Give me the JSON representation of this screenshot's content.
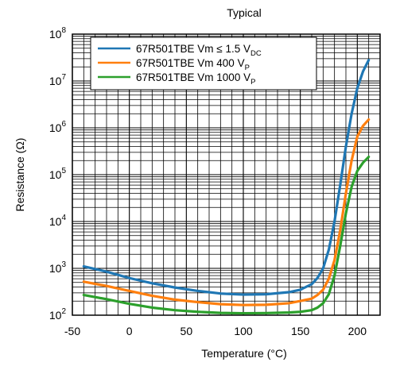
{
  "chart_data": {
    "type": "line",
    "title": "Typical",
    "xlabel": "Temperature (°C)",
    "ylabel": "Resistance (Ω)",
    "xlim": [
      -50,
      220
    ],
    "ylim": [
      100,
      100000000
    ],
    "y_scale": "log",
    "grid": true,
    "legend_placement": "top-left",
    "x_ticks": [
      "-50",
      "0",
      "50",
      "100",
      "150",
      "200"
    ],
    "x_tick_values": [
      -50,
      0,
      50,
      100,
      150,
      200
    ],
    "y_tick_values": [
      100,
      1000,
      10000,
      100000,
      1000000,
      10000000,
      100000000
    ],
    "y_tick_exponents": [
      "2",
      "3",
      "4",
      "5",
      "6",
      "7",
      "8"
    ],
    "y_tick_base": "10",
    "series": [
      {
        "name": "67R501TBE Vm ≤ 1.5 V",
        "name_subscript": "DC",
        "color": "#1f77b4",
        "x": [
          -40,
          -20,
          0,
          20,
          40,
          60,
          80,
          100,
          120,
          140,
          150,
          160,
          165,
          170,
          175,
          180,
          185,
          190,
          195,
          200,
          205,
          210
        ],
        "y": [
          1100,
          850,
          620,
          480,
          390,
          330,
          290,
          275,
          280,
          310,
          350,
          460,
          620,
          1000,
          2500,
          10000,
          60000,
          400000,
          2000000,
          7000000,
          16000000,
          28000000
        ]
      },
      {
        "name": "67R501TBE Vm   400 V",
        "name_subscript": "P",
        "color": "#ff7f0e",
        "x": [
          -40,
          -20,
          0,
          20,
          40,
          60,
          80,
          100,
          120,
          140,
          160,
          165,
          170,
          175,
          180,
          185,
          190,
          195,
          200,
          205,
          210
        ],
        "y": [
          520,
          420,
          330,
          260,
          215,
          190,
          172,
          165,
          167,
          180,
          225,
          270,
          350,
          600,
          1500,
          6500,
          40000,
          200000,
          650000,
          1100000,
          1500000
        ]
      },
      {
        "name": "67R501TBE Vm 1000 V",
        "name_subscript": "P",
        "color": "#2ca02c",
        "x": [
          -40,
          -20,
          0,
          20,
          40,
          60,
          80,
          100,
          120,
          140,
          150,
          160,
          165,
          170,
          175,
          180,
          185,
          190,
          195,
          200,
          205,
          210
        ],
        "y": [
          270,
          220,
          175,
          145,
          128,
          118,
          112,
          110,
          111,
          114,
          118,
          128,
          145,
          180,
          280,
          700,
          3000,
          15000,
          55000,
          120000,
          180000,
          240000
        ]
      }
    ]
  }
}
